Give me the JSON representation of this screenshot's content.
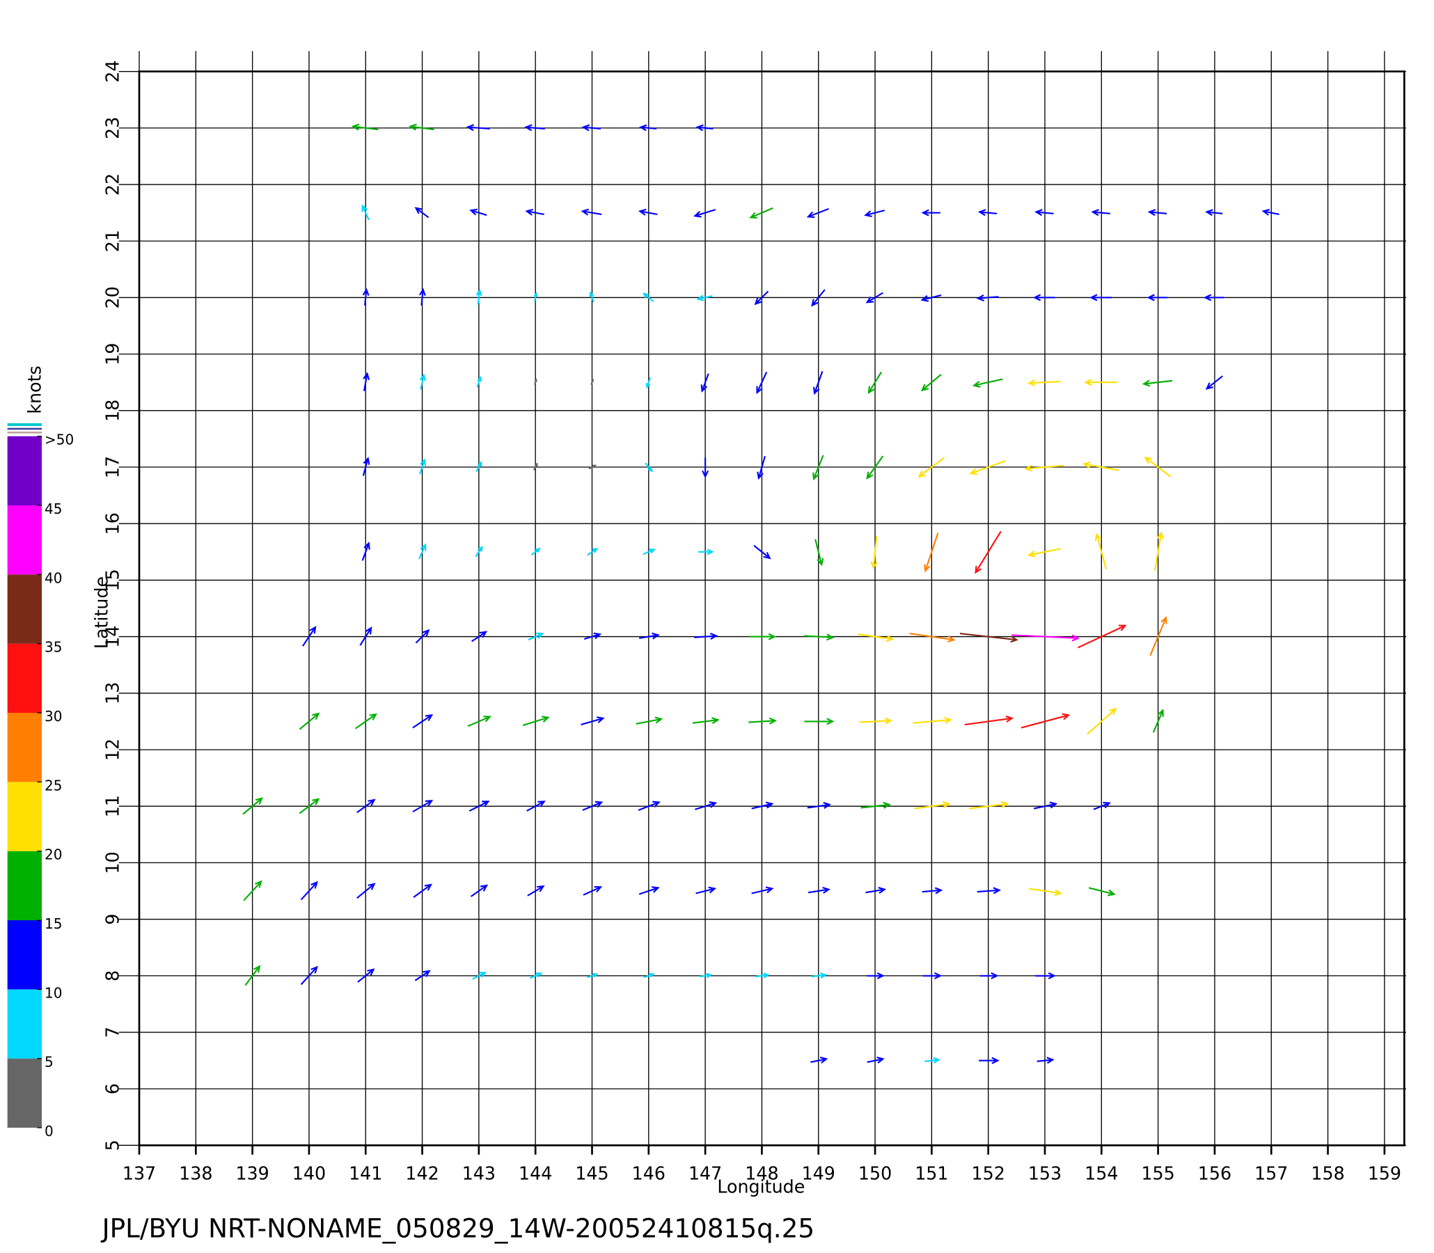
{
  "chart_data": {
    "type": "vector",
    "title": "JPL/BYU  NRT-NONAME_050829_14W-20052410815q.25",
    "x_label": "Longitude",
    "y_label": "Latitude",
    "xlim": [
      137,
      159.35
    ],
    "ylim": [
      5,
      24
    ],
    "xticks": [
      137,
      138,
      139,
      140,
      141,
      142,
      143,
      144,
      145,
      146,
      147,
      148,
      149,
      150,
      151,
      152,
      153,
      154,
      155,
      156,
      157,
      158,
      159
    ],
    "yticks": [
      5,
      6,
      7,
      8,
      9,
      10,
      11,
      12,
      13,
      14,
      15,
      16,
      17,
      18,
      19,
      20,
      21,
      22,
      23,
      24
    ],
    "grid": true,
    "colorbar": {
      "label": "knots",
      "lim": [
        0,
        50
      ],
      "ticks": [
        0,
        5,
        10,
        15,
        20,
        25,
        30,
        35,
        40,
        45,
        {
          "value": 50,
          "label": ">50"
        }
      ],
      "colors": [
        "#666666",
        "#00d8ff",
        "#0000ff",
        "#00b000",
        "#ffe000",
        "#ff8000",
        "#ff1010",
        "#7a2a18",
        "#ff00ff",
        "#7000c8"
      ]
    },
    "x": [
      141,
      142,
      143,
      144,
      145,
      146,
      147,
      141,
      142,
      143,
      144,
      145,
      146,
      147,
      148,
      149,
      150,
      151,
      152,
      153,
      154,
      155,
      156,
      157,
      141,
      142,
      143,
      144,
      145,
      146,
      147,
      148,
      149,
      150,
      151,
      152,
      153,
      154,
      155,
      156,
      141,
      142,
      143,
      144,
      145,
      146,
      147,
      148,
      149,
      150,
      151,
      152,
      153,
      154,
      155,
      156,
      141,
      142,
      143,
      144,
      145,
      146,
      147,
      148,
      149,
      150,
      151,
      152,
      153,
      154,
      155,
      141,
      142,
      143,
      144,
      145,
      146,
      147,
      148,
      149,
      150,
      151,
      152,
      153,
      154,
      155,
      140,
      141,
      142,
      143,
      144,
      145,
      146,
      147,
      148,
      149,
      150,
      151,
      152,
      153,
      154,
      155,
      140,
      141,
      142,
      143,
      144,
      145,
      146,
      147,
      148,
      149,
      150,
      151,
      152,
      153,
      154,
      155,
      139,
      140,
      141,
      142,
      143,
      144,
      145,
      146,
      147,
      148,
      149,
      150,
      151,
      152,
      153,
      154,
      139,
      140,
      141,
      142,
      143,
      144,
      145,
      146,
      147,
      148,
      149,
      150,
      151,
      152,
      153,
      154,
      139,
      140,
      141,
      142,
      143,
      144,
      145,
      146,
      147,
      148,
      149,
      150,
      151,
      152,
      153,
      149,
      150,
      151,
      152,
      153
    ],
    "y": [
      23,
      23,
      23,
      23,
      23,
      23,
      23,
      21.5,
      21.5,
      21.5,
      21.5,
      21.5,
      21.5,
      21.5,
      21.5,
      21.5,
      21.5,
      21.5,
      21.5,
      21.5,
      21.5,
      21.5,
      21.5,
      21.5,
      20,
      20,
      20,
      20,
      20,
      20,
      20,
      20,
      20,
      20,
      20,
      20,
      20,
      20,
      20,
      20,
      18.5,
      18.5,
      18.5,
      18.5,
      18.5,
      18.5,
      18.5,
      18.5,
      18.5,
      18.5,
      18.5,
      18.5,
      18.5,
      18.5,
      18.5,
      18.5,
      17,
      17,
      17,
      17,
      17,
      17,
      17,
      17,
      17,
      17,
      17,
      17,
      17,
      17,
      17,
      15.5,
      15.5,
      15.5,
      15.5,
      15.5,
      15.5,
      15.5,
      15.5,
      15.5,
      15.5,
      15.5,
      15.5,
      15.5,
      15.5,
      15.5,
      14,
      14,
      14,
      14,
      14,
      14,
      14,
      14,
      14,
      14,
      14,
      14,
      14,
      14,
      14,
      14,
      12.5,
      12.5,
      12.5,
      12.5,
      12.5,
      12.5,
      12.5,
      12.5,
      12.5,
      12.5,
      12.5,
      12.5,
      12.5,
      12.5,
      12.5,
      12.5,
      11,
      11,
      11,
      11,
      11,
      11,
      11,
      11,
      11,
      11,
      11,
      11,
      11,
      11,
      11,
      11,
      9.5,
      9.5,
      9.5,
      9.5,
      9.5,
      9.5,
      9.5,
      9.5,
      9.5,
      9.5,
      9.5,
      9.5,
      9.5,
      9.5,
      9.5,
      9.5,
      8,
      8,
      8,
      8,
      8,
      8,
      8,
      8,
      8,
      8,
      8,
      8,
      8,
      8,
      8,
      6.5,
      6.5,
      6.5,
      6.5,
      6.5
    ],
    "u": [
      -16,
      -15,
      -14,
      -12,
      -11,
      -10,
      -10,
      -4,
      -8,
      -10,
      -11,
      -12,
      -11,
      -13,
      -14,
      -13,
      -12,
      -11,
      -11,
      -11,
      -11,
      -11,
      -10,
      -10,
      1,
      1,
      1,
      1,
      -2,
      -6,
      -9,
      -8,
      -8,
      -10,
      -12,
      -13,
      -13,
      -13,
      -12,
      -12,
      2,
      2,
      2,
      1,
      1,
      -2,
      -4,
      -6,
      -5,
      -8,
      -12,
      -18,
      -20,
      -20,
      -18,
      -10,
      3,
      3,
      3,
      2,
      4,
      4,
      0,
      -4,
      -6,
      -10,
      -16,
      -22,
      -24,
      -22,
      -16,
      4,
      4,
      4,
      5,
      6,
      7,
      9,
      10,
      4,
      -2,
      -8,
      -16,
      -20,
      -6,
      4,
      8,
      7,
      8,
      9,
      9,
      10,
      12,
      14,
      16,
      18,
      22,
      28,
      36,
      42,
      30,
      10,
      12,
      13,
      12,
      14,
      16,
      14,
      16,
      16,
      17,
      18,
      20,
      24,
      30,
      30,
      18,
      6,
      12,
      12,
      11,
      12,
      12,
      11,
      12,
      13,
      13,
      13,
      14,
      18,
      22,
      24,
      14,
      10,
      11,
      10,
      11,
      11,
      10,
      10,
      11,
      12,
      12,
      13,
      13,
      12,
      12,
      14,
      20,
      16,
      9,
      10,
      10,
      9,
      8,
      7,
      6,
      6,
      7,
      8,
      9,
      10,
      11,
      11,
      12,
      10,
      10,
      9,
      12,
      10
    ],
    "v": [
      2,
      2,
      1,
      1,
      1,
      1,
      1,
      9,
      6,
      3,
      2,
      2,
      2,
      -4,
      -6,
      -5,
      -3,
      0,
      1,
      1,
      1,
      1,
      1,
      2,
      10,
      10,
      9,
      5,
      6,
      5,
      -2,
      -8,
      -10,
      -6,
      -3,
      -1,
      0,
      0,
      0,
      0,
      11,
      9,
      6,
      3,
      3,
      -6,
      -11,
      -13,
      -14,
      -13,
      -10,
      -4,
      -1,
      0,
      -2,
      -8,
      11,
      9,
      6,
      4,
      2,
      -5,
      -12,
      -14,
      -15,
      -14,
      -12,
      -8,
      -2,
      4,
      12,
      11,
      9,
      6,
      4,
      4,
      3,
      0,
      -8,
      -16,
      -20,
      -24,
      -26,
      -4,
      22,
      24,
      12,
      11,
      8,
      6,
      4,
      3,
      2,
      1,
      0,
      -1,
      -3,
      -4,
      -4,
      -2,
      14,
      24,
      10,
      9,
      8,
      6,
      5,
      4,
      3,
      2,
      1,
      0,
      1,
      2,
      4,
      8,
      16,
      14,
      10,
      9,
      8,
      7,
      6,
      6,
      5,
      5,
      4,
      3,
      2,
      2,
      3,
      3,
      3,
      4,
      12,
      11,
      9,
      8,
      7,
      6,
      5,
      4,
      3,
      3,
      2,
      2,
      1,
      1,
      -3,
      -4,
      12,
      11,
      8,
      6,
      4,
      3,
      2,
      2,
      1,
      1,
      1,
      0,
      0,
      0,
      0,
      2,
      2,
      1,
      0,
      1
    ]
  }
}
